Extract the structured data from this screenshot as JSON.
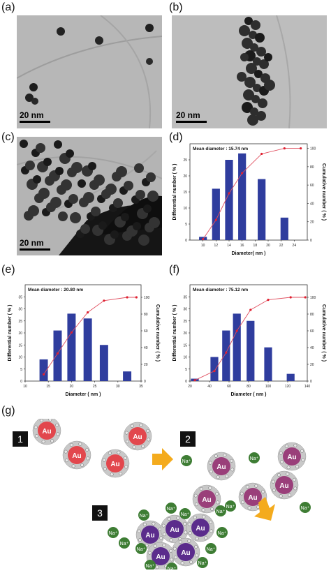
{
  "figure": {
    "labels": {
      "a": "(a)",
      "b": "(b)",
      "c": "(c)",
      "d": "(d)",
      "e": "(e)",
      "f": "(f)",
      "g": "(g)"
    },
    "scale_bar": "20 nm"
  },
  "chart_data": [
    {
      "type": "bar",
      "panel": "(d)",
      "annotation": "Mean diameter : 15.74 nm",
      "xlabel": "Diameter( nm )",
      "ylabel": "Differential number ( % )",
      "y2label": "Cumulative number ( % )",
      "xlim": [
        8,
        26
      ],
      "ylim": [
        0,
        30
      ],
      "y2lim": [
        0,
        105
      ],
      "xticks": [
        10,
        12,
        14,
        16,
        18,
        20,
        22,
        24
      ],
      "yticks": [
        0,
        5,
        10,
        15,
        20,
        25
      ],
      "y2ticks": [
        0,
        20,
        40,
        60,
        80,
        100
      ],
      "bars": [
        {
          "x": 10,
          "value": 1
        },
        {
          "x": 12,
          "value": 16
        },
        {
          "x": 14,
          "value": 25
        },
        {
          "x": 16,
          "value": 27
        },
        {
          "x": 19,
          "value": 19
        },
        {
          "x": 22.5,
          "value": 7
        }
      ],
      "bar_width": 1.2,
      "cumulative": {
        "x": [
          10,
          12,
          14,
          16,
          19,
          22.5,
          25
        ],
        "y": [
          1,
          22,
          51,
          73,
          94,
          100,
          100
        ]
      }
    },
    {
      "type": "bar",
      "panel": "(e)",
      "annotation": "Mean diameter : 20.80 nm",
      "xlabel": "Diameter ( nm )",
      "ylabel": "Differential number ( % )",
      "y2label": "Cumulative number ( % )",
      "xlim": [
        10,
        35
      ],
      "ylim": [
        0,
        40
      ],
      "y2lim": [
        0,
        115
      ],
      "xticks": [
        10,
        15,
        20,
        25,
        30,
        35
      ],
      "yticks": [
        0,
        5,
        10,
        15,
        20,
        25,
        30,
        35
      ],
      "y2ticks": [
        0,
        20,
        40,
        60,
        80,
        100
      ],
      "bars": [
        {
          "x": 14,
          "value": 9
        },
        {
          "x": 17,
          "value": 21
        },
        {
          "x": 20,
          "value": 28
        },
        {
          "x": 23.5,
          "value": 26
        },
        {
          "x": 27,
          "value": 15
        },
        {
          "x": 32,
          "value": 4
        }
      ],
      "bar_width": 1.8,
      "cumulative": {
        "x": [
          14,
          17,
          20,
          23.5,
          27,
          32,
          34
        ],
        "y": [
          8,
          33,
          58,
          82,
          96,
          100,
          100
        ]
      }
    },
    {
      "type": "bar",
      "panel": "(f)",
      "annotation": "Mean diameter : 75.12 nm",
      "xlabel": "Diameter ( nm )",
      "ylabel": "Differential number ( % )",
      "y2label": "Cumulative number ( % )",
      "xlim": [
        20,
        140
      ],
      "ylim": [
        0,
        40
      ],
      "y2lim": [
        0,
        115
      ],
      "xticks": [
        20,
        40,
        60,
        80,
        100,
        120,
        140
      ],
      "yticks": [
        0,
        5,
        10,
        15,
        20,
        25,
        30,
        35
      ],
      "y2ticks": [
        0,
        20,
        40,
        60,
        80,
        100
      ],
      "bars": [
        {
          "x": 25,
          "value": 1
        },
        {
          "x": 45,
          "value": 10
        },
        {
          "x": 57,
          "value": 21
        },
        {
          "x": 68,
          "value": 28
        },
        {
          "x": 82,
          "value": 25
        },
        {
          "x": 100,
          "value": 14
        },
        {
          "x": 123,
          "value": 3
        }
      ],
      "bar_width": 8,
      "cumulative": {
        "x": [
          25,
          45,
          57,
          68,
          82,
          100,
          123,
          138
        ],
        "y": [
          1,
          12,
          34,
          60,
          85,
          97,
          100,
          100
        ]
      }
    }
  ],
  "schematic": {
    "steps": [
      "1",
      "2",
      "3"
    ],
    "particle_label": "Au",
    "ion_label": "Na⁺",
    "colors": {
      "au_stage1": "#e2474d",
      "au_stage2": "#9a3f7a",
      "au_stage3": "#5b2c8c",
      "ion": "#3e7d34",
      "arrow": "#f4ab1d"
    }
  }
}
